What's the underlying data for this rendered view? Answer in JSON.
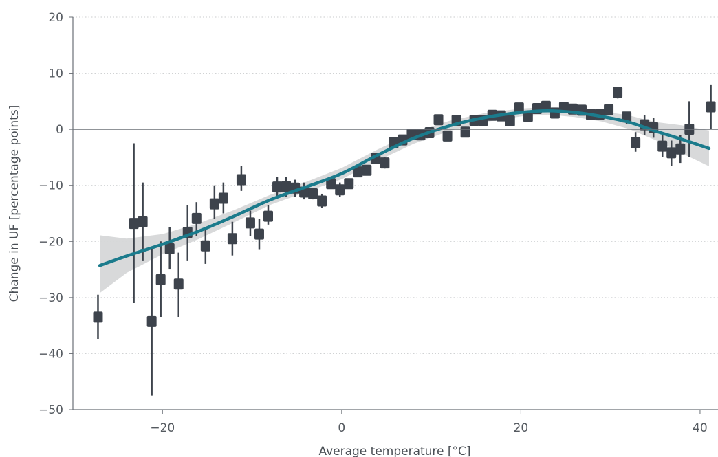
{
  "chart_data": {
    "type": "scatter",
    "xlabel": "Average temperature [°C]",
    "ylabel": "Change in UF [percentage points]",
    "xlim": [
      -30,
      42
    ],
    "ylim": [
      -50,
      20
    ],
    "xticks": [
      -20,
      0,
      20,
      40
    ],
    "yticks": [
      20,
      10,
      0,
      -10,
      -20,
      -30,
      -40,
      -50
    ],
    "xtick_labels": [
      "−20",
      "0",
      "20",
      "40"
    ],
    "ytick_labels": [
      "20",
      "10",
      "0",
      "−10",
      "−20",
      "−30",
      "−40",
      "−50"
    ],
    "grid": "horizontal dotted",
    "colors": {
      "points": "#3d434c",
      "fit": "#1b7b8c",
      "band": "#d6d7d8",
      "axis": "#6b7077",
      "grid": "#c9cbcd"
    },
    "points": [
      {
        "x": -27.2,
        "y": -33.5,
        "lo": -37.5,
        "hi": -29.5
      },
      {
        "x": -23.2,
        "y": -16.8,
        "lo": -31.0,
        "hi": -2.5
      },
      {
        "x": -22.2,
        "y": -16.5,
        "lo": -23.5,
        "hi": -9.5
      },
      {
        "x": -21.2,
        "y": -34.3,
        "lo": -47.5,
        "hi": -21.0
      },
      {
        "x": -20.2,
        "y": -26.8,
        "lo": -33.5,
        "hi": -20.0
      },
      {
        "x": -19.2,
        "y": -21.3,
        "lo": -25.0,
        "hi": -17.5
      },
      {
        "x": -18.2,
        "y": -27.6,
        "lo": -33.5,
        "hi": -22.0
      },
      {
        "x": -17.2,
        "y": -18.4,
        "lo": -23.5,
        "hi": -13.5
      },
      {
        "x": -16.2,
        "y": -15.9,
        "lo": -19.0,
        "hi": -13.0
      },
      {
        "x": -15.2,
        "y": -20.8,
        "lo": -24.0,
        "hi": -17.5
      },
      {
        "x": -14.2,
        "y": -13.3,
        "lo": -16.0,
        "hi": -10.0
      },
      {
        "x": -13.2,
        "y": -12.3,
        "lo": -15.0,
        "hi": -9.5
      },
      {
        "x": -12.2,
        "y": -19.5,
        "lo": -22.5,
        "hi": -16.5
      },
      {
        "x": -11.2,
        "y": -9.0,
        "lo": -11.0,
        "hi": -6.5
      },
      {
        "x": -10.2,
        "y": -16.7,
        "lo": -19.0,
        "hi": -14.5
      },
      {
        "x": -9.2,
        "y": -18.7,
        "lo": -21.5,
        "hi": -16.0
      },
      {
        "x": -8.2,
        "y": -15.5,
        "lo": -17.0,
        "hi": -13.5
      },
      {
        "x": -7.2,
        "y": -10.3,
        "lo": -12.0,
        "hi": -8.5
      },
      {
        "x": -6.2,
        "y": -10.2,
        "lo": -12.0,
        "hi": -8.5
      },
      {
        "x": -5.2,
        "y": -10.5,
        "lo": -12.0,
        "hi": -9.0
      },
      {
        "x": -4.2,
        "y": -11.2,
        "lo": -12.5,
        "hi": -9.5
      },
      {
        "x": -3.2,
        "y": -11.5,
        "lo": -12.5,
        "hi": -10.5
      },
      {
        "x": -2.2,
        "y": -12.8,
        "lo": -14.0,
        "hi": -11.5
      },
      {
        "x": -1.2,
        "y": -9.7,
        "lo": -10.5,
        "hi": -9.0
      },
      {
        "x": -0.2,
        "y": -10.8,
        "lo": -12.0,
        "hi": -9.5
      },
      {
        "x": 0.8,
        "y": -9.7,
        "lo": -10.5,
        "hi": -9.0
      },
      {
        "x": 1.8,
        "y": -7.6,
        "lo": -8.5,
        "hi": -6.5
      },
      {
        "x": 2.8,
        "y": -7.3,
        "lo": -8.0,
        "hi": -6.5
      },
      {
        "x": 3.8,
        "y": -5.2,
        "lo": -6.0,
        "hi": -4.5
      },
      {
        "x": 4.8,
        "y": -6.0,
        "lo": -7.0,
        "hi": -5.0
      },
      {
        "x": 5.8,
        "y": -2.4,
        "lo": -3.0,
        "hi": -2.0
      },
      {
        "x": 6.8,
        "y": -1.9,
        "lo": -2.5,
        "hi": -1.5
      },
      {
        "x": 7.8,
        "y": -0.9,
        "lo": -1.5,
        "hi": -0.5
      },
      {
        "x": 8.8,
        "y": -1.0,
        "lo": -1.5,
        "hi": -0.5
      },
      {
        "x": 9.8,
        "y": -0.6,
        "lo": -1.0,
        "hi": -0.2
      },
      {
        "x": 10.8,
        "y": 1.7,
        "lo": 1.0,
        "hi": 2.5
      },
      {
        "x": 11.8,
        "y": -1.2,
        "lo": -2.0,
        "hi": -0.5
      },
      {
        "x": 12.8,
        "y": 1.6,
        "lo": 1.0,
        "hi": 2.2
      },
      {
        "x": 13.8,
        "y": -0.5,
        "lo": -1.0,
        "hi": 0.0
      },
      {
        "x": 14.8,
        "y": 1.6,
        "lo": 1.0,
        "hi": 2.2
      },
      {
        "x": 15.8,
        "y": 1.6,
        "lo": 1.0,
        "hi": 2.2
      },
      {
        "x": 16.8,
        "y": 2.5,
        "lo": 2.0,
        "hi": 3.0
      },
      {
        "x": 17.8,
        "y": 2.4,
        "lo": 2.0,
        "hi": 2.8
      },
      {
        "x": 18.8,
        "y": 1.5,
        "lo": 1.0,
        "hi": 2.0
      },
      {
        "x": 19.8,
        "y": 3.8,
        "lo": 3.0,
        "hi": 4.5
      },
      {
        "x": 20.8,
        "y": 2.3,
        "lo": 1.5,
        "hi": 3.0
      },
      {
        "x": 21.8,
        "y": 3.7,
        "lo": 3.0,
        "hi": 4.5
      },
      {
        "x": 22.8,
        "y": 4.1,
        "lo": 3.5,
        "hi": 4.8
      },
      {
        "x": 23.8,
        "y": 2.9,
        "lo": 2.2,
        "hi": 3.5
      },
      {
        "x": 24.8,
        "y": 3.9,
        "lo": 3.3,
        "hi": 4.5
      },
      {
        "x": 25.8,
        "y": 3.6,
        "lo": 3.0,
        "hi": 4.2
      },
      {
        "x": 26.8,
        "y": 3.4,
        "lo": 2.8,
        "hi": 4.0
      },
      {
        "x": 27.8,
        "y": 2.6,
        "lo": 2.0,
        "hi": 3.2
      },
      {
        "x": 28.8,
        "y": 2.7,
        "lo": 2.0,
        "hi": 3.5
      },
      {
        "x": 29.8,
        "y": 3.5,
        "lo": 2.8,
        "hi": 4.5
      },
      {
        "x": 30.8,
        "y": 6.6,
        "lo": 5.5,
        "hi": 7.5
      },
      {
        "x": 31.8,
        "y": 2.2,
        "lo": 1.0,
        "hi": 3.0
      },
      {
        "x": 32.8,
        "y": -2.4,
        "lo": -4.0,
        "hi": -0.5
      },
      {
        "x": 33.8,
        "y": 0.8,
        "lo": -1.0,
        "hi": 2.5
      },
      {
        "x": 34.8,
        "y": 0.3,
        "lo": -1.5,
        "hi": 2.0
      },
      {
        "x": 35.8,
        "y": -3.0,
        "lo": -5.0,
        "hi": -1.0
      },
      {
        "x": 36.8,
        "y": -4.2,
        "lo": -6.5,
        "hi": -2.0
      },
      {
        "x": 37.8,
        "y": -3.5,
        "lo": -6.0,
        "hi": -1.0
      },
      {
        "x": 38.8,
        "y": 0.0,
        "lo": -5.0,
        "hi": 5.0
      },
      {
        "x": 41.2,
        "y": 4.0,
        "lo": 0.0,
        "hi": 8.0
      }
    ],
    "fit": [
      {
        "x": -27,
        "y": -24.3,
        "lo": -29.2,
        "hi": -18.9
      },
      {
        "x": -24,
        "y": -22.6,
        "lo": -25.6,
        "hi": -19.5
      },
      {
        "x": -20,
        "y": -20.5,
        "lo": -22.3,
        "hi": -18.7
      },
      {
        "x": -16,
        "y": -18.2,
        "lo": -19.6,
        "hi": -16.8
      },
      {
        "x": -12,
        "y": -15.5,
        "lo": -16.6,
        "hi": -14.4
      },
      {
        "x": -8,
        "y": -12.6,
        "lo": -13.5,
        "hi": -11.7
      },
      {
        "x": -4,
        "y": -10.3,
        "lo": -11.2,
        "hi": -9.4
      },
      {
        "x": 0,
        "y": -7.9,
        "lo": -8.9,
        "hi": -6.9
      },
      {
        "x": 4,
        "y": -4.6,
        "lo": -5.6,
        "hi": -3.6
      },
      {
        "x": 8,
        "y": -1.6,
        "lo": -2.6,
        "hi": -0.6
      },
      {
        "x": 12,
        "y": 0.6,
        "lo": -0.3,
        "hi": 1.5
      },
      {
        "x": 16,
        "y": 2.1,
        "lo": 1.3,
        "hi": 2.9
      },
      {
        "x": 20,
        "y": 3.0,
        "lo": 2.3,
        "hi": 3.7
      },
      {
        "x": 23,
        "y": 3.3,
        "lo": 2.6,
        "hi": 4.0
      },
      {
        "x": 26,
        "y": 3.0,
        "lo": 2.2,
        "hi": 3.8
      },
      {
        "x": 29,
        "y": 2.3,
        "lo": 1.4,
        "hi": 3.2
      },
      {
        "x": 32,
        "y": 1.3,
        "lo": 0.1,
        "hi": 2.5
      },
      {
        "x": 35,
        "y": -0.3,
        "lo": -1.9,
        "hi": 1.3
      },
      {
        "x": 38,
        "y": -1.8,
        "lo": -4.3,
        "hi": 0.7
      },
      {
        "x": 41,
        "y": -3.4,
        "lo": -6.6,
        "hi": -0.2
      }
    ]
  }
}
